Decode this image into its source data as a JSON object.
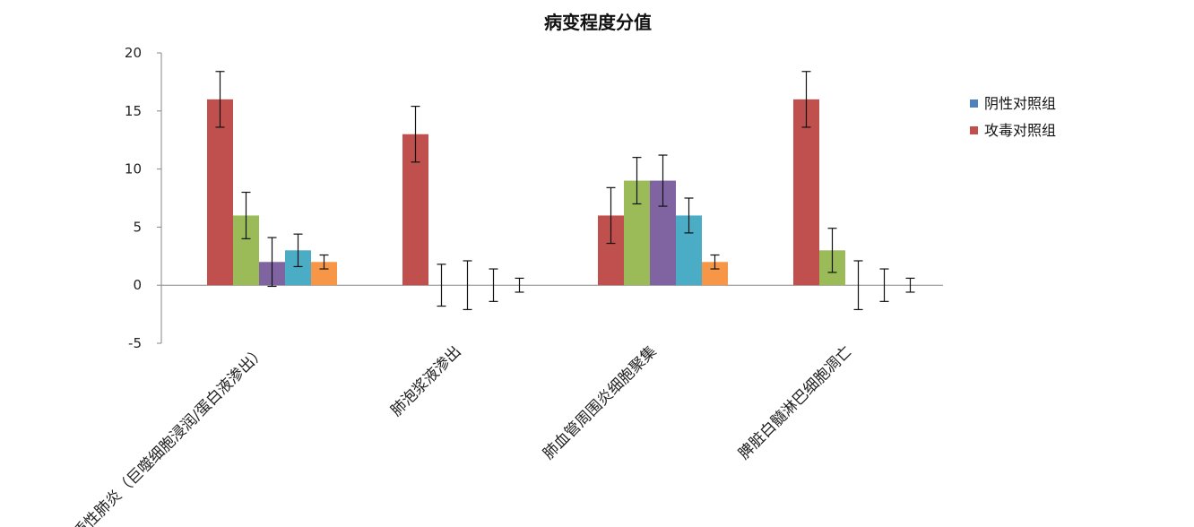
{
  "chart_data": {
    "type": "bar",
    "title": "病变程度分值",
    "xlabel": "",
    "ylabel": "",
    "ylim": [
      -5,
      20
    ],
    "yticks": [
      -5,
      0,
      5,
      10,
      15,
      20
    ],
    "grid": false,
    "legend_position": "right",
    "categories": [
      "间质性肺炎（巨噬细胞浸润/蛋白液渗出）",
      "肺泡浆液渗出",
      "肺血管周围炎细胞聚集",
      "脾脏白髓淋巴细胞凋亡"
    ],
    "series": [
      {
        "name": "阴性对照组",
        "color": "#4f81bd",
        "values": [
          0,
          0,
          0,
          0
        ],
        "errors": [
          0,
          0,
          0,
          0
        ]
      },
      {
        "name": "攻毒对照组",
        "color": "#c0504d",
        "values": [
          16,
          13,
          6,
          16
        ],
        "errors": [
          2.4,
          2.4,
          2.4,
          2.4
        ]
      },
      {
        "color": "#9bbb59",
        "values": [
          6,
          0,
          9,
          3
        ],
        "errors": [
          2.0,
          1.8,
          2.0,
          1.9
        ]
      },
      {
        "color": "#8064a2",
        "values": [
          2,
          0,
          9,
          0
        ],
        "errors": [
          2.1,
          2.1,
          2.2,
          2.1
        ]
      },
      {
        "color": "#4bacc6",
        "values": [
          3,
          0,
          6,
          0
        ],
        "errors": [
          1.4,
          1.4,
          1.5,
          1.4
        ]
      },
      {
        "color": "#f79646",
        "values": [
          2,
          0,
          2,
          0
        ],
        "errors": [
          0.6,
          0.6,
          0.6,
          0.6
        ]
      }
    ]
  }
}
